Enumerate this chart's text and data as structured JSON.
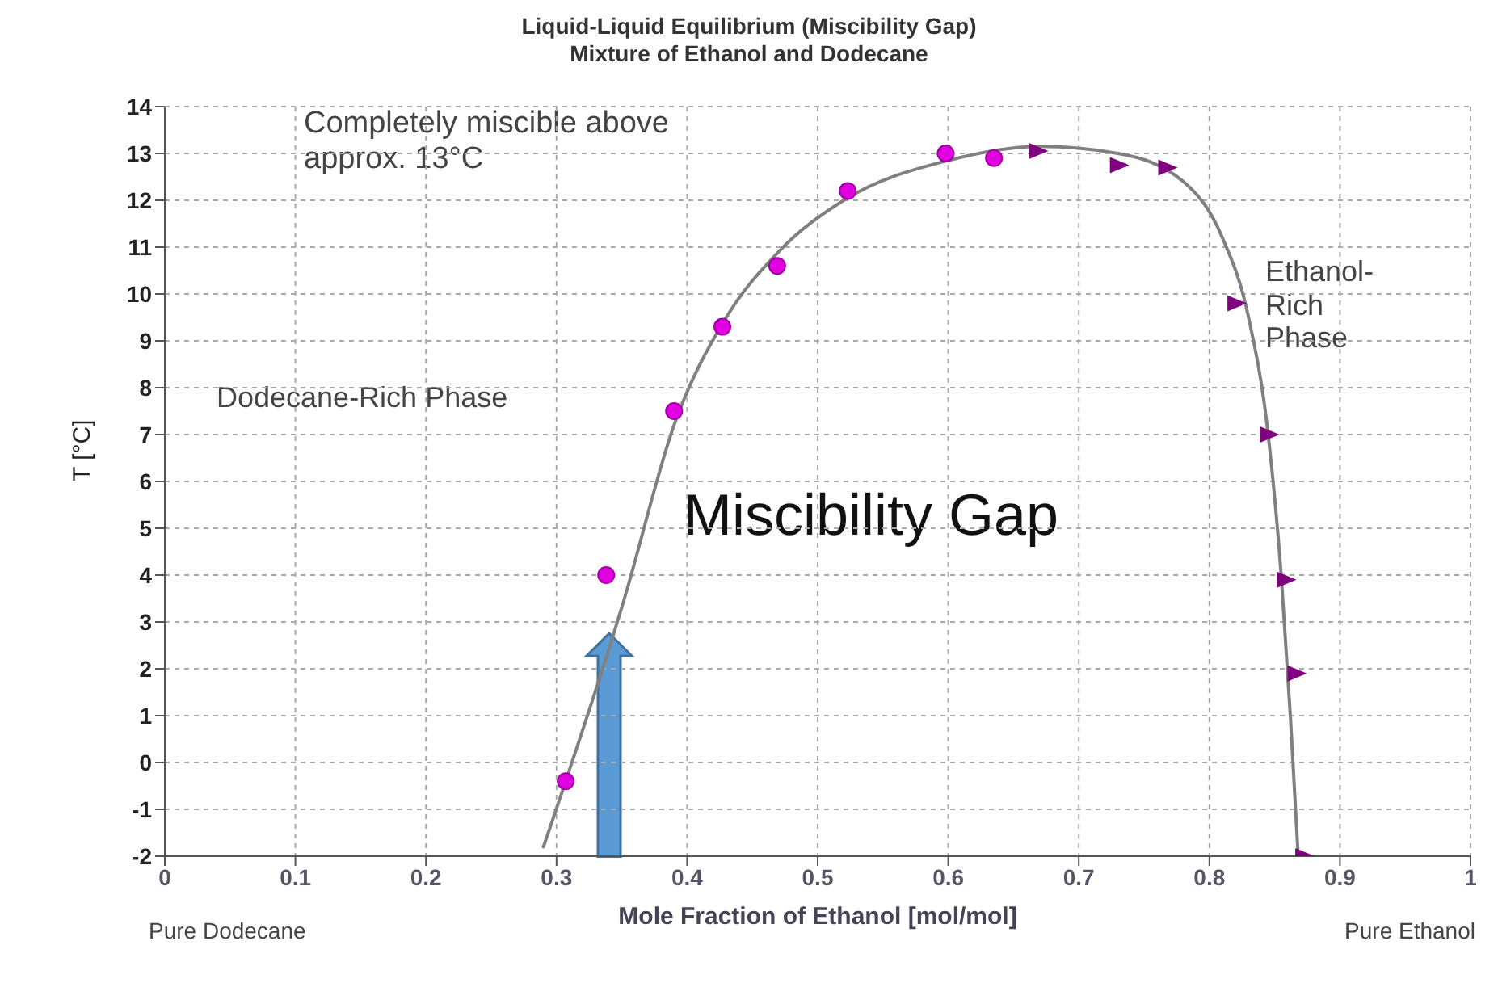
{
  "chart_data": {
    "type": "scatter",
    "title": "Liquid-Liquid Equilibrium (Miscibility Gap)",
    "subtitle": "Mixture of Ethanol and Dodecane",
    "xlabel": "Mole Fraction of Ethanol [mol/mol]",
    "ylabel": "T [°C]",
    "xlim": [
      0,
      1
    ],
    "xticks": [
      0,
      0.1,
      0.2,
      0.3,
      0.4,
      0.5,
      0.6,
      0.7,
      0.8,
      0.9,
      1
    ],
    "ylim": [
      -2,
      14
    ],
    "yticks": [
      -2,
      -1,
      0,
      1,
      2,
      3,
      4,
      5,
      6,
      7,
      8,
      9,
      10,
      11,
      12,
      13,
      14
    ],
    "grid": true,
    "series": [
      {
        "type": "line",
        "color": "#808080",
        "marker": "none",
        "x": [
          0.29,
          0.352,
          0.39,
          0.43,
          0.47,
          0.52,
          0.6,
          0.67,
          0.73,
          0.78,
          0.81,
          0.83,
          0.845,
          0.855,
          0.862,
          0.868
        ],
        "values": [
          -1.8,
          3.5,
          7.2,
          9.5,
          10.9,
          12.0,
          12.85,
          13.15,
          13.0,
          12.4,
          11.2,
          9.5,
          7.0,
          4.0,
          1.0,
          -2.0
        ]
      },
      {
        "color": "#e000e0",
        "marker": "circle",
        "x": [
          0.307,
          0.338,
          0.39,
          0.427,
          0.469,
          0.523,
          0.598,
          0.635
        ],
        "values": [
          -0.4,
          4.0,
          7.5,
          9.3,
          10.6,
          12.2,
          13.0,
          12.9
        ]
      },
      {
        "color": "#800080",
        "marker": "triangle",
        "x": [
          0.668,
          0.73,
          0.767,
          0.82,
          0.845,
          0.858,
          0.866,
          0.872
        ],
        "values": [
          13.05,
          12.75,
          12.7,
          9.8,
          7.0,
          3.9,
          1.9,
          -2.0
        ]
      }
    ],
    "annotations": [
      "Completely miscible above approx. 13°C",
      "Dodecane-Rich Phase",
      "Ethanol-Rich Phase",
      "Miscibility Gap",
      "Pure Dodecane",
      "Pure Ethanol"
    ]
  }
}
